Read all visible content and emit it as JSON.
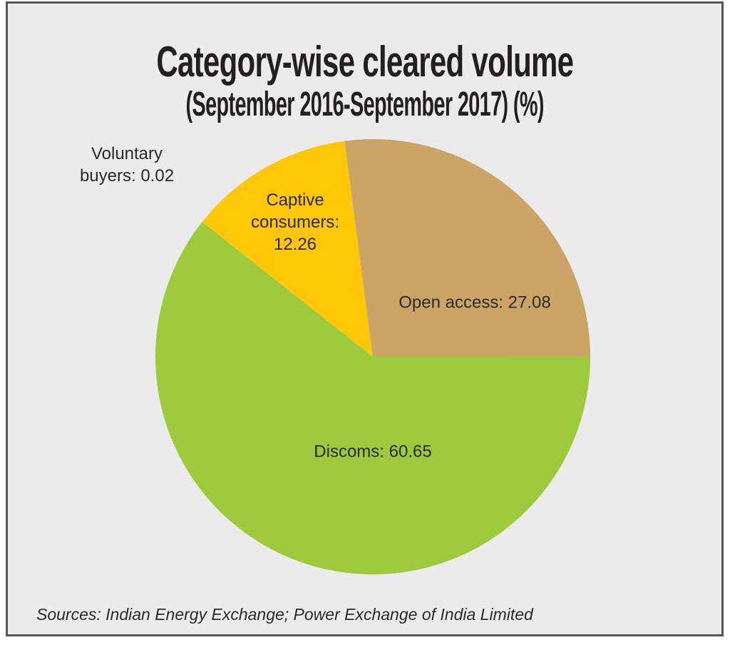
{
  "panel": {
    "background_color": "#ebebeb",
    "border_color": "#54565a"
  },
  "chart_data": {
    "type": "pie",
    "title": "Category-wise cleared volume",
    "subtitle": "(September 2016-September 2017) (%)",
    "unit": "percent",
    "legend": "none",
    "labels_on_slices": true,
    "start_angle_deg": -51.7,
    "rotation": "clockwise",
    "slices": [
      {
        "label": "Voluntary buyers",
        "value": 0.02,
        "display": "Voluntary buyers: 0.02",
        "color": "#ffc60a",
        "label_position": "outside-top-left"
      },
      {
        "label": "Captive consumers",
        "value": 12.26,
        "display": "Captive consumers: 12.26",
        "color": "#ffc60a",
        "label_position": "inside"
      },
      {
        "label": "Open access",
        "value": 27.08,
        "display": "Open access: 27.08",
        "color": "#c9a464",
        "label_position": "inside"
      },
      {
        "label": "Discoms",
        "value": 60.65,
        "display": "Discoms: 60.65",
        "color": "#9dc93c",
        "label_position": "inside"
      }
    ],
    "source_note": "Sources: Indian Energy Exchange; Power Exchange of India Limited"
  }
}
